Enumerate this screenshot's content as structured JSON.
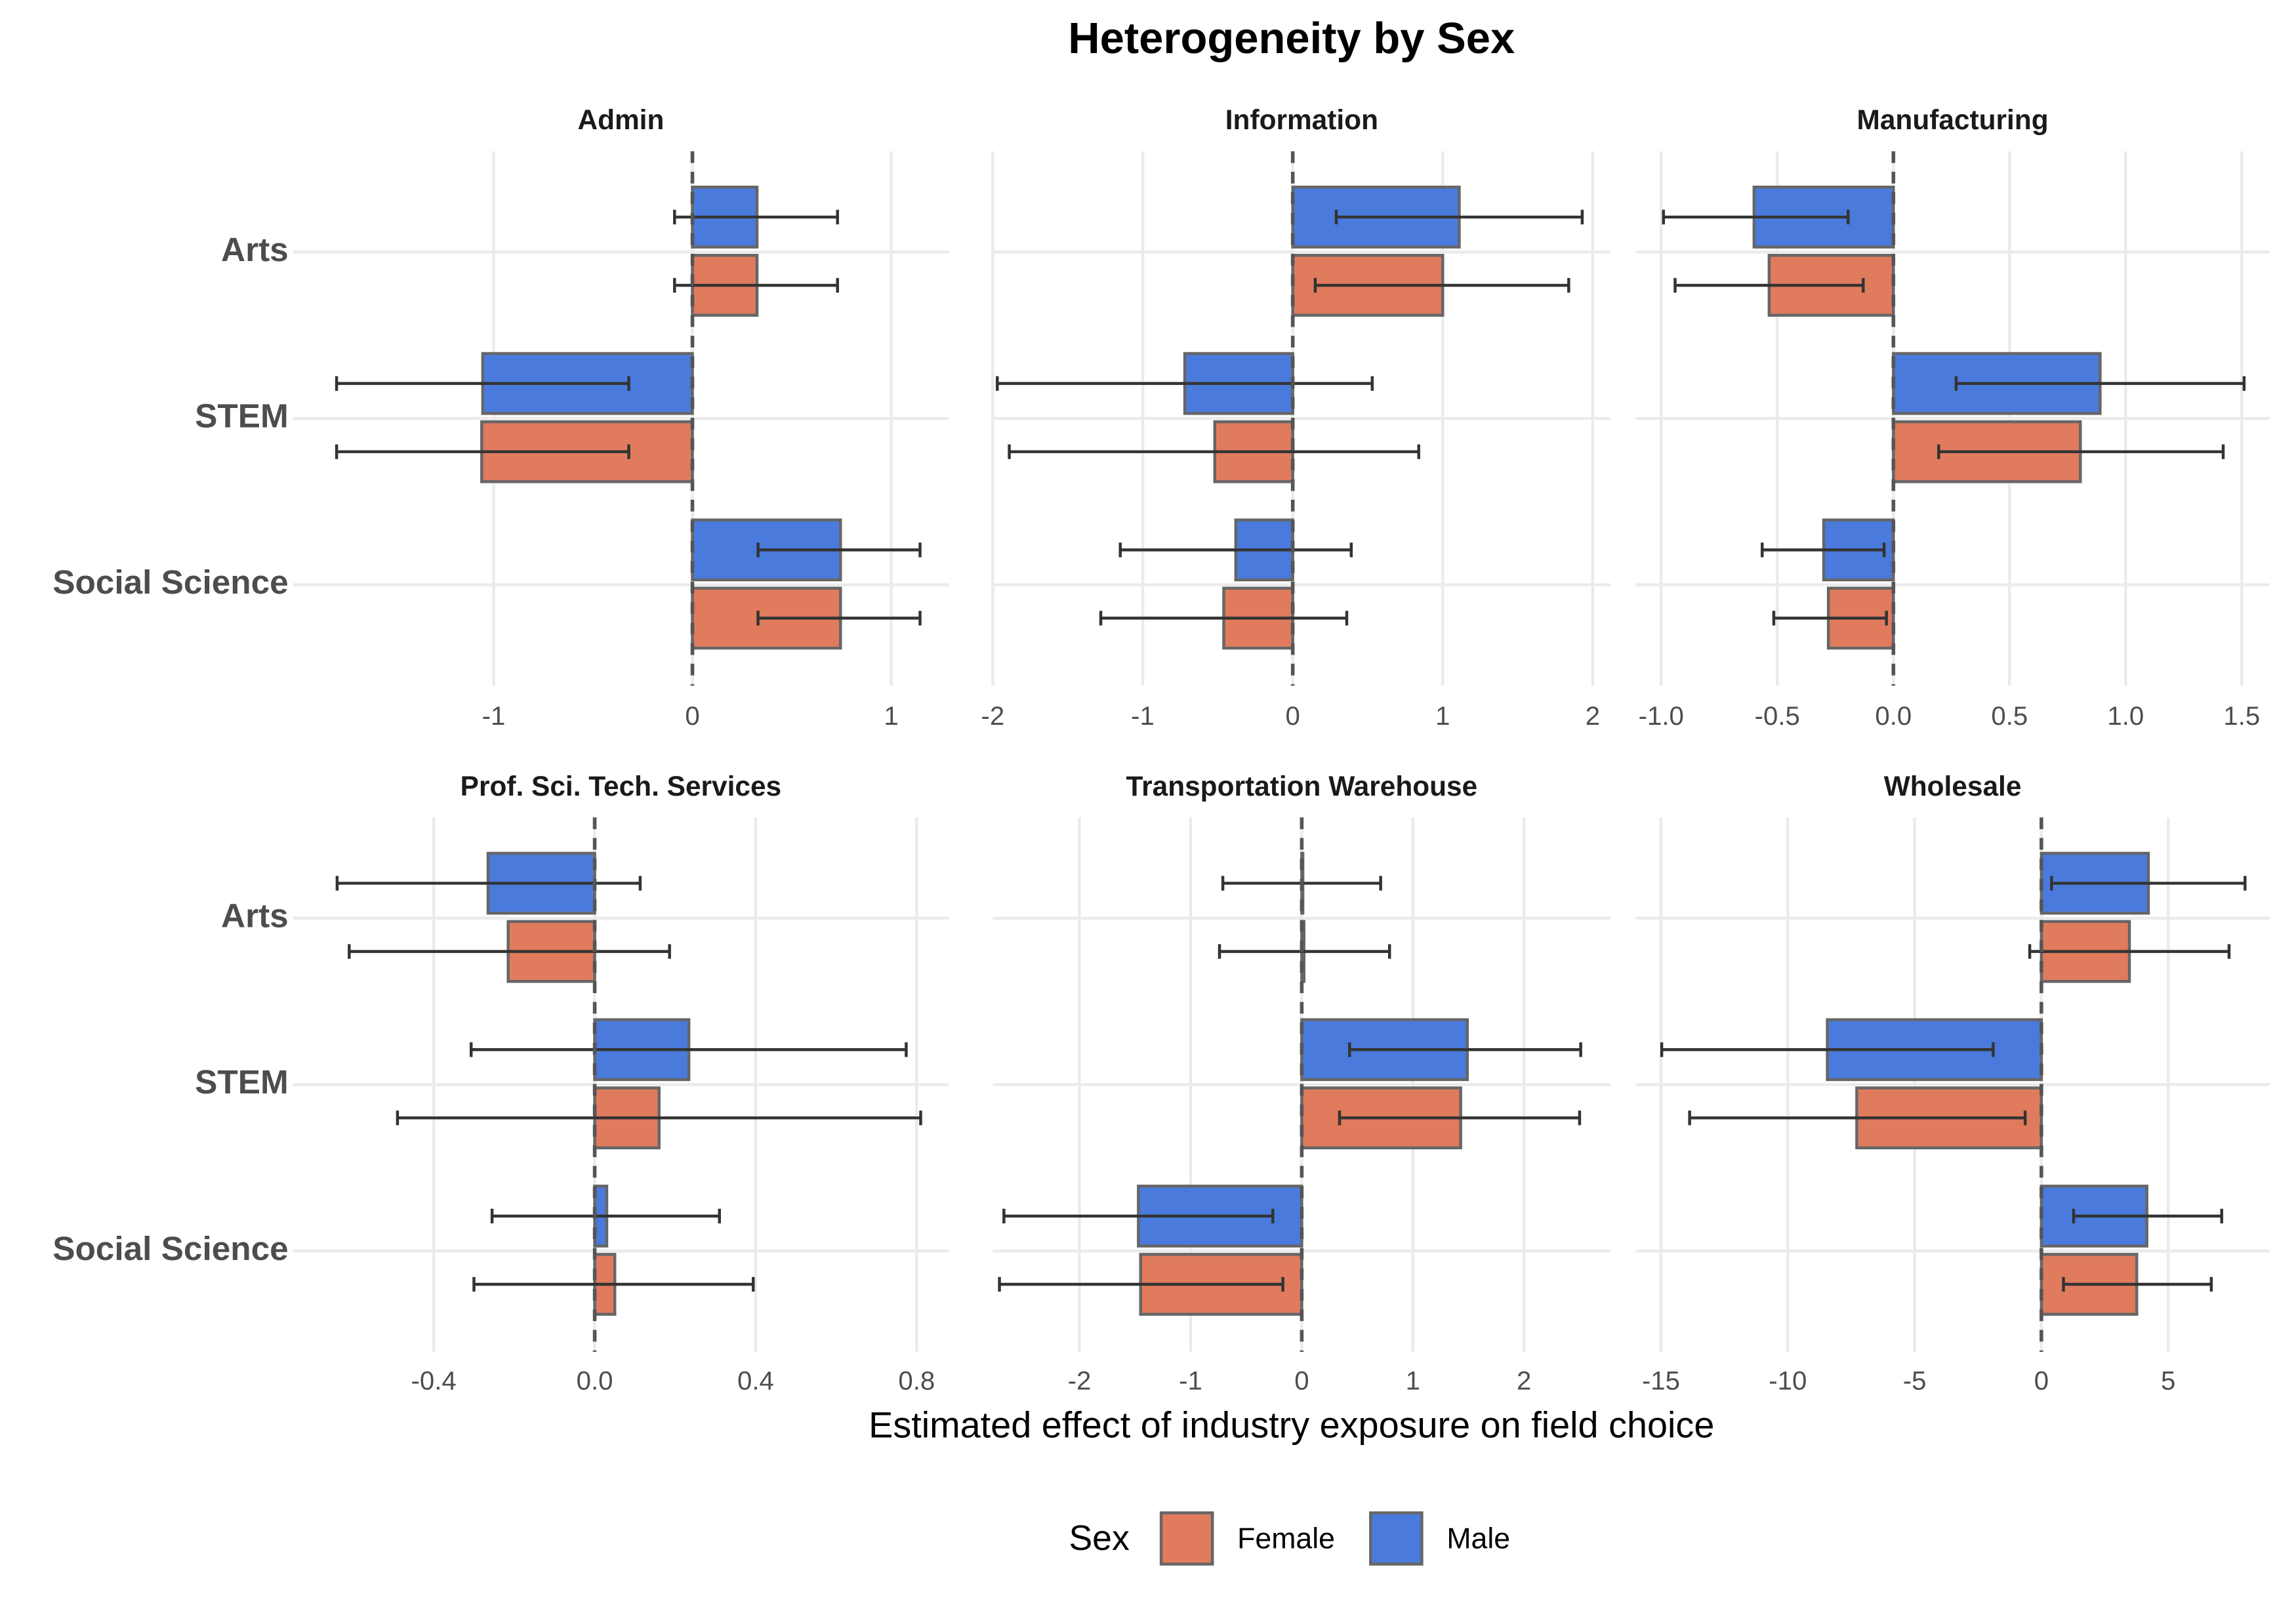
{
  "title": "Heterogeneity by Sex",
  "x_label": "Estimated effect of industry exposure on field choice",
  "legend": {
    "title": "Sex",
    "position": "bottom"
  },
  "chart_data": [
    {
      "type": "bar",
      "orientation": "horizontal",
      "title": "Admin",
      "categories": [
        "Arts",
        "STEM",
        "Social Science"
      ],
      "series": [
        {
          "name": "Female",
          "color": "#e07b5e",
          "values": [
            0.325,
            -1.06,
            0.745
          ],
          "ci_low": [
            -0.09,
            -1.79,
            0.33
          ],
          "ci_high": [
            0.73,
            -0.32,
            1.145
          ]
        },
        {
          "name": "Male",
          "color": "#4a7bdc",
          "values": [
            0.325,
            -1.055,
            0.745
          ],
          "ci_low": [
            -0.09,
            -1.79,
            0.33
          ],
          "ci_high": [
            0.73,
            -0.32,
            1.145
          ]
        }
      ],
      "xlim": [
        -2.01,
        1.29
      ],
      "xticks": [
        -1,
        0,
        1
      ],
      "grid": true
    },
    {
      "type": "bar",
      "orientation": "horizontal",
      "title": "Information",
      "categories": [
        "Arts",
        "STEM",
        "Social Science"
      ],
      "series": [
        {
          "name": "Female",
          "color": "#e07b5e",
          "values": [
            1.0,
            -0.52,
            -0.46
          ],
          "ci_low": [
            0.15,
            -1.89,
            -1.28
          ],
          "ci_high": [
            1.84,
            0.84,
            0.36
          ]
        },
        {
          "name": "Male",
          "color": "#4a7bdc",
          "values": [
            1.11,
            -0.72,
            -0.38
          ],
          "ci_low": [
            0.29,
            -1.97,
            -1.15
          ],
          "ci_high": [
            1.93,
            0.53,
            0.39
          ]
        }
      ],
      "xlim": [
        -2.0,
        2.12
      ],
      "xticks": [
        -2,
        -1,
        0,
        1,
        2
      ],
      "grid": true
    },
    {
      "type": "bar",
      "orientation": "horizontal",
      "title": "Manufacturing",
      "categories": [
        "Arts",
        "STEM",
        "Social Science"
      ],
      "series": [
        {
          "name": "Female",
          "color": "#e07b5e",
          "values": [
            -0.535,
            0.805,
            -0.28
          ],
          "ci_low": [
            -0.94,
            0.195,
            -0.515
          ],
          "ci_high": [
            -0.13,
            1.42,
            -0.03
          ]
        },
        {
          "name": "Male",
          "color": "#4a7bdc",
          "values": [
            -0.6,
            0.89,
            -0.3
          ],
          "ci_low": [
            -0.99,
            0.27,
            -0.565
          ],
          "ci_high": [
            -0.195,
            1.51,
            -0.04
          ]
        }
      ],
      "xlim": [
        -1.11,
        1.62
      ],
      "xticks": [
        {
          "value": -1,
          "label": "-1.0"
        },
        -0.5,
        {
          "value": 0,
          "label": "0.0"
        },
        0.5,
        {
          "value": 1,
          "label": "1.0"
        },
        1.5
      ],
      "grid": true
    },
    {
      "type": "bar",
      "orientation": "horizontal",
      "title": "Prof. Sci. Tech. Services",
      "categories": [
        "Arts",
        "STEM",
        "Social Science"
      ],
      "series": [
        {
          "name": "Female",
          "color": "#e07b5e",
          "values": [
            -0.215,
            0.16,
            0.05
          ],
          "ci_low": [
            -0.61,
            -0.49,
            -0.3
          ],
          "ci_high": [
            0.186,
            0.81,
            0.394
          ]
        },
        {
          "name": "Male",
          "color": "#4a7bdc",
          "values": [
            -0.265,
            0.234,
            0.03
          ],
          "ci_low": [
            -0.64,
            -0.307,
            -0.255
          ],
          "ci_high": [
            0.113,
            0.774,
            0.31
          ]
        }
      ],
      "xlim": [
        -0.75,
        0.88
      ],
      "xticks": [
        -0.4,
        {
          "value": 0,
          "label": "0.0"
        },
        0.4,
        0.8
      ],
      "grid": true
    },
    {
      "type": "bar",
      "orientation": "horizontal",
      "title": "Transportation Warehouse",
      "categories": [
        "Arts",
        "STEM",
        "Social Science"
      ],
      "series": [
        {
          "name": "Female",
          "color": "#e07b5e",
          "values": [
            0.02,
            1.43,
            -1.45
          ],
          "ci_low": [
            -0.74,
            0.34,
            -2.72
          ],
          "ci_high": [
            0.79,
            2.5,
            -0.17
          ]
        },
        {
          "name": "Male",
          "color": "#4a7bdc",
          "values": [
            0.01,
            1.49,
            -1.47
          ],
          "ci_low": [
            -0.71,
            0.43,
            -2.68
          ],
          "ci_high": [
            0.71,
            2.51,
            -0.26
          ]
        }
      ],
      "xlim": [
        -2.78,
        2.78
      ],
      "xticks": [
        -2,
        -1,
        0,
        1,
        2
      ],
      "grid": true
    },
    {
      "type": "bar",
      "orientation": "horizontal",
      "title": "Wholesale",
      "categories": [
        "Arts",
        "STEM",
        "Social Science"
      ],
      "series": [
        {
          "name": "Female",
          "color": "#e07b5e",
          "values": [
            3.47,
            -7.28,
            3.76
          ],
          "ci_low": [
            -0.46,
            -13.87,
            0.87
          ],
          "ci_high": [
            7.4,
            -0.64,
            6.7
          ]
        },
        {
          "name": "Male",
          "color": "#4a7bdc",
          "values": [
            4.22,
            -8.44,
            4.16
          ],
          "ci_low": [
            0.4,
            -14.97,
            1.27
          ],
          "ci_high": [
            8.03,
            -1.9,
            7.11
          ]
        }
      ],
      "xlim": [
        -16.0,
        9.0
      ],
      "xticks": [
        -15,
        -10,
        -5,
        0,
        5
      ],
      "grid": true
    }
  ]
}
